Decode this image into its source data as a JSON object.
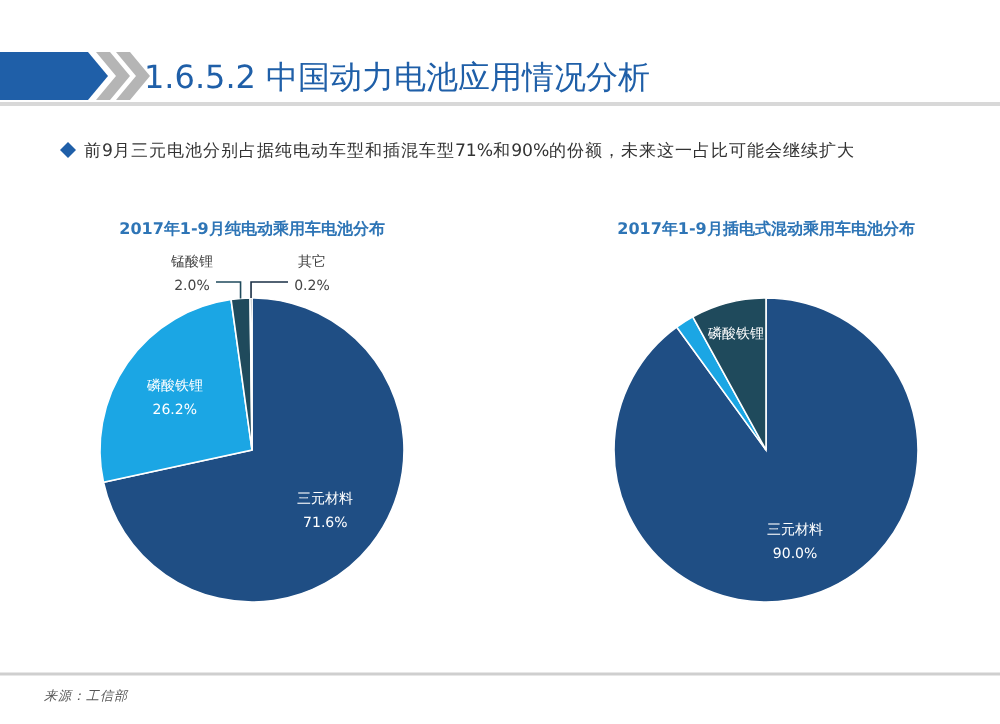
{
  "chart_data": [
    {
      "type": "other",
      "title": "1.6.5.2 中国动力电池应用情况分析",
      "subtitle": "前9月三元电池分别占据纯电动车型和插混车型71%和90%的份额，未来这一占比可能会继续扩大",
      "annotations": [
        "来源：工信部"
      ]
    },
    {
      "type": "pie",
      "title": "2017年1-9月纯电动乘用车电池分布",
      "categories": [
        "三元材料",
        "磷酸铁锂",
        "锰酸锂",
        "其它"
      ],
      "values": [
        71.6,
        26.2,
        2.0,
        0.2
      ],
      "colors": [
        "#1f4e84",
        "#1ba6e4",
        "#1f4a5c",
        "#1a2f45"
      ],
      "value_labels": [
        "71.6%",
        "26.2%",
        "2.0%",
        "0.2%"
      ]
    },
    {
      "type": "pie",
      "title": "2017年1-9月插电式混动乘用车电池分布",
      "categories": [
        "三元材料",
        null,
        "磷酸铁锂"
      ],
      "values": [
        90.0,
        2.0,
        8.0
      ],
      "colors": [
        "#1f4e84",
        "#1ba6e4",
        "#1f4a5c"
      ],
      "value_labels": [
        "90.0%",
        null,
        null
      ]
    }
  ]
}
